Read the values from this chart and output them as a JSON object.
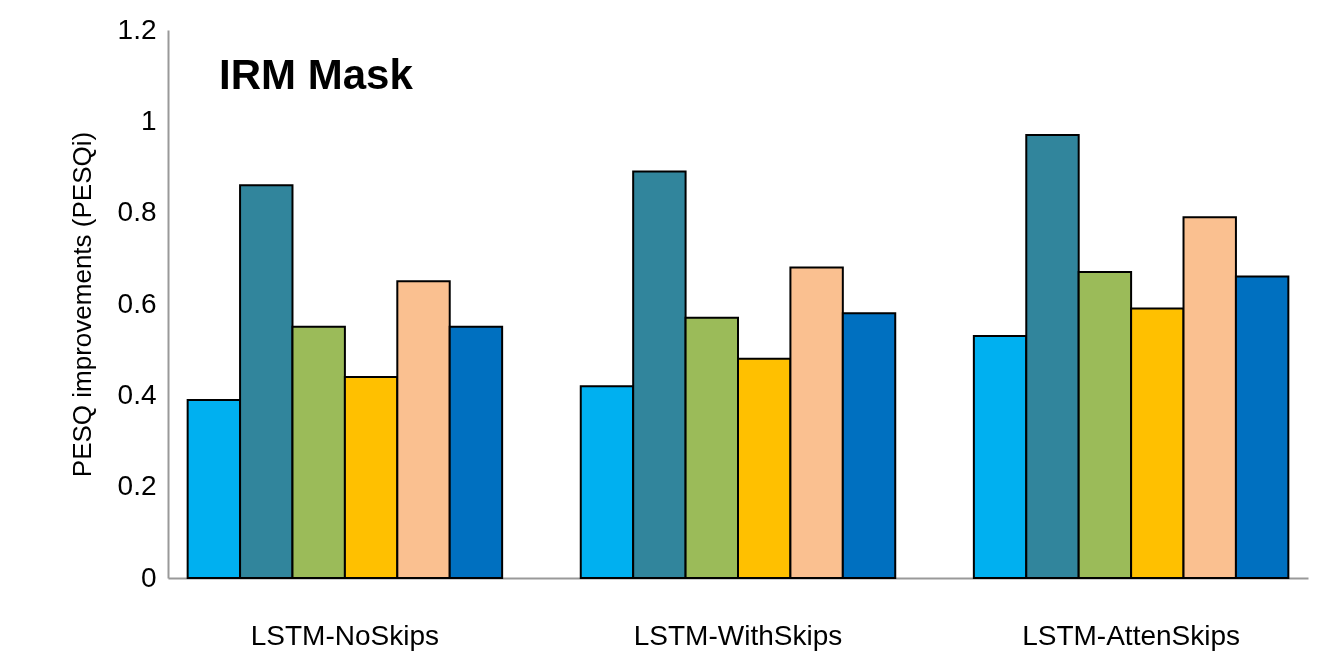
{
  "chart_data": {
    "type": "bar",
    "title": "IRM Mask",
    "ylabel": "PESQ improvements (PESQi)",
    "categories": [
      "LSTM-NoSkips",
      "LSTM-WithSkips",
      "LSTM-AttenSkips"
    ],
    "series": [
      {
        "color": "#00b0f0",
        "values": [
          0.39,
          0.42,
          0.53
        ]
      },
      {
        "color": "#31859c",
        "values": [
          0.86,
          0.89,
          0.97
        ]
      },
      {
        "color": "#9bbb59",
        "values": [
          0.55,
          0.57,
          0.67
        ]
      },
      {
        "color": "#ffc000",
        "values": [
          0.44,
          0.48,
          0.59
        ]
      },
      {
        "color": "#fac090",
        "values": [
          0.65,
          0.68,
          0.79
        ]
      },
      {
        "color": "#0070c0",
        "values": [
          0.55,
          0.58,
          0.66
        ]
      }
    ],
    "ylim": [
      0,
      1.2
    ],
    "yticks": [
      0,
      0.2,
      0.4,
      0.6,
      0.8,
      1,
      1.2
    ],
    "grid": false,
    "legend": false
  }
}
